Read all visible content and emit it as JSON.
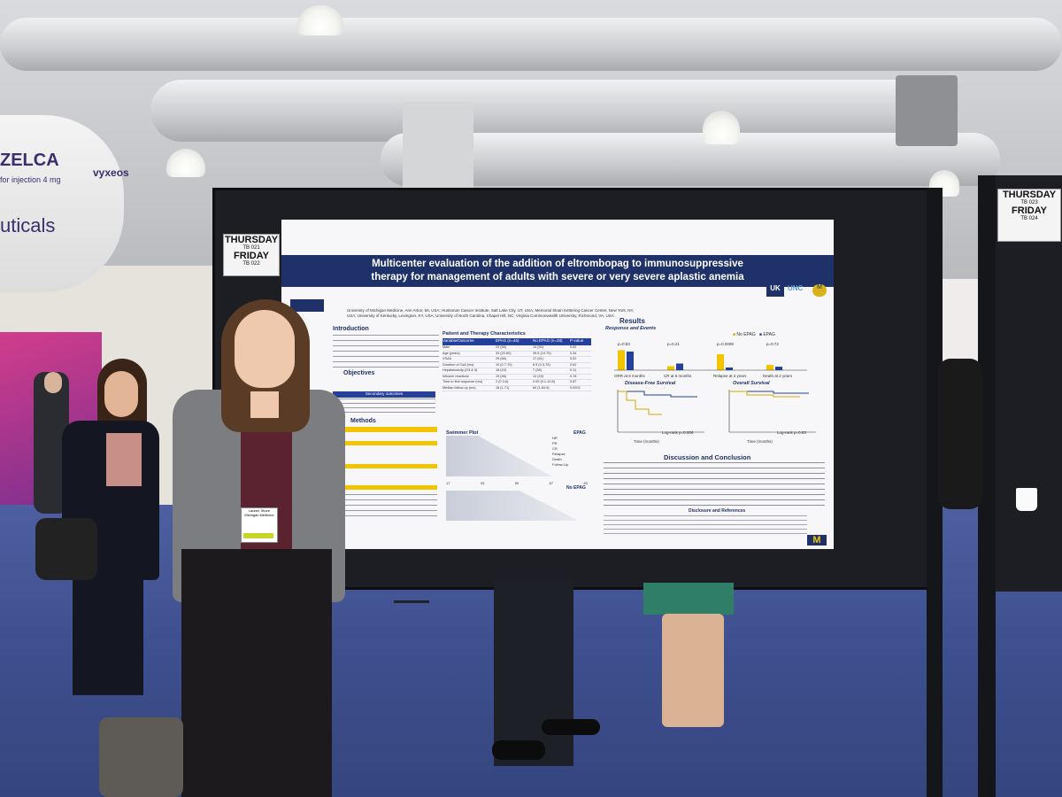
{
  "scene": {
    "description_free": true
  },
  "booth_left": {
    "brand_partial": "ZELCA",
    "sub_partial": "for injection 4 mg",
    "brand2_partial": "vyxeos",
    "company_partial": "uticals"
  },
  "board_sign_left": {
    "day1": "THURSDAY",
    "code1": "TB 021",
    "day2": "FRIDAY",
    "code2": "TB 022"
  },
  "board_sign_right": {
    "day1": "THURSDAY",
    "code1": "TB 023",
    "day2": "FRIDAY",
    "code2": "TB 024"
  },
  "poster": {
    "title_line1": "Multicenter evaluation of the addition of eltrombopag to immunosuppressive",
    "title_line2": "therapy for management of adults with severe or very severe aplastic anemia",
    "sections": {
      "introduction": "Introduction",
      "objectives": "Objectives",
      "secondary_outcomes": "Secondary outcomes",
      "methods": "Methods",
      "patient_characteristics": "Patient and Therapy Characteristics",
      "swimmer_plot": "Swimmer Plot",
      "results": "Results",
      "response_events": "Response and Events",
      "dfs": "Disease-Free Survival",
      "os": "Overall Survival",
      "discussion": "Discussion and Conclusion",
      "disclosure": "Disclosure and References"
    },
    "table_headers": [
      "Variable/Outcome",
      "EPAG (n=45)",
      "No EPAG (n=28)",
      "P-value"
    ],
    "table_rows": [
      [
        "Male",
        "23 (56)",
        "14 (50)",
        "0.62"
      ],
      [
        "Age (years)",
        "33 (20-60)",
        "39.5 (19-70)",
        "0.34"
      ],
      [
        "VSAA",
        "29 (66)",
        "17 (61)",
        "0.52"
      ],
      [
        "Duration of CsA (mo)",
        "10 (0.7-70)",
        "8.5 (0.3-79)",
        "0.62"
      ],
      [
        "Hepatotoxicity (G3 & 4)",
        "18 (43)",
        "7 (38)",
        "0.11"
      ],
      [
        "Infusion reactions",
        "19 (46)",
        "12 (43)",
        "0.78"
      ],
      [
        "Time to first response (mo)",
        "2 (0.3-6)",
        "2.05 (0.1-10.8)",
        "0.87"
      ],
      [
        "Median follow-up (mo)",
        "18 (1-71)",
        "60 (1-84.5)",
        "0.0002"
      ]
    ],
    "legend": {
      "epag": "EPAG",
      "no_epag": "No EPAG"
    },
    "response_chart": {
      "categories": [
        "ORR at 6 months",
        "CR at 6 months",
        "Relapse at 2 years",
        "Death at 2 years"
      ],
      "p_values": [
        "p=0.83",
        "p=0.21",
        "p=0.0008",
        "p=0.72"
      ],
      "no_epag": [
        0.75,
        0.15,
        0.6,
        0.2
      ],
      "epag": [
        0.7,
        0.25,
        0.1,
        0.13
      ]
    },
    "dfs_pvalue": "Log-rank p=0.006",
    "os_pvalue": "Log-rank p=0.83",
    "axis_time": "Time (months)",
    "swimmer_labels": [
      "NR",
      "PR",
      "CR",
      "Relapse",
      "Death",
      "Follow-Up"
    ],
    "swimmer_ticks": [
      "17",
      "33",
      "50",
      "67",
      "83"
    ],
    "epag_label": "EPAG",
    "no_epag_label": "No EPAG",
    "affiliations": "University of Michigan Medicine, Ann Arbor, MI, USA; Huntsman Cancer Institute, Salt Lake City, UT, USA; Memorial Sloan Kettering Cancer Center, New York, NY, USA; University of Kentucky, Lexington, KY, USA; University of North Carolina, Chapel Hill, NC; Virginia Commonwealth University, Richmond, VA, USA",
    "logos": [
      "UK",
      "UNC",
      "M"
    ]
  },
  "badge": {
    "name": "Lauren Shore",
    "org": "Michigan Medicine"
  }
}
